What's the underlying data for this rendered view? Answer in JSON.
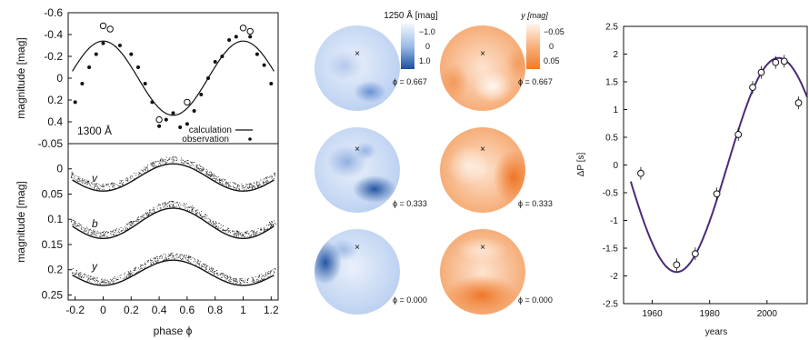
{
  "chart_data": [
    {
      "type": "scatter",
      "panel": "top-left",
      "ylabel": "magnitude [mag]",
      "ylim": [
        -0.6,
        0.6
      ],
      "y_inverted": true,
      "xlim": [
        -0.25,
        1.25
      ],
      "y_ticks": [
        "-0.6",
        "-0.4",
        "-0.2",
        "0",
        "0.2",
        "0.4"
      ],
      "annotation": "1300 Å",
      "legend": {
        "placement": "bottom-right",
        "entries": [
          "calculation",
          "observation"
        ]
      },
      "series": [
        {
          "name": "calculation",
          "kind": "line",
          "color": "#111111",
          "model": {
            "mean": 0.0,
            "amplitude": 0.34,
            "period": 1.0,
            "x_peak_bright": 0.0
          }
        },
        {
          "name": "observation",
          "kind": "points",
          "color": "#111111",
          "points": [
            [
              -0.2,
              0.22
            ],
            [
              -0.15,
              0.05
            ],
            [
              -0.1,
              -0.1
            ],
            [
              -0.05,
              -0.22
            ],
            [
              0.0,
              -0.32
            ],
            [
              0.05,
              -0.45
            ],
            [
              0.12,
              -0.3
            ],
            [
              0.2,
              -0.22
            ],
            [
              0.25,
              -0.1
            ],
            [
              0.3,
              0.05
            ],
            [
              0.35,
              0.22
            ],
            [
              0.4,
              0.44
            ],
            [
              0.45,
              0.38
            ],
            [
              0.5,
              0.32
            ],
            [
              0.55,
              0.45
            ],
            [
              0.6,
              0.42
            ],
            [
              0.65,
              0.3
            ],
            [
              0.7,
              0.15
            ],
            [
              0.75,
              0.0
            ],
            [
              0.8,
              -0.15
            ],
            [
              0.85,
              -0.2
            ],
            [
              0.9,
              -0.35
            ],
            [
              0.95,
              -0.38
            ],
            [
              1.0,
              -0.45
            ],
            [
              1.05,
              -0.38
            ],
            [
              1.1,
              -0.22
            ],
            [
              1.15,
              -0.12
            ],
            [
              1.2,
              0.05
            ]
          ]
        },
        {
          "name": "observation-open",
          "kind": "open-points",
          "color": "#111111",
          "points": [
            [
              0.0,
              -0.48
            ],
            [
              0.05,
              -0.45
            ],
            [
              0.4,
              0.38
            ],
            [
              0.6,
              0.22
            ],
            [
              1.0,
              -0.46
            ],
            [
              1.05,
              -0.43
            ]
          ]
        }
      ]
    },
    {
      "type": "scatter",
      "panel": "bottom-left",
      "xlabel": "phase ϕ",
      "ylabel": "magnitude [mag]",
      "xlim": [
        -0.25,
        1.25
      ],
      "ylim": [
        -0.05,
        0.26
      ],
      "y_inverted": true,
      "x_ticks": [
        "-0.2",
        "0",
        "0.2",
        "0.4",
        "0.6",
        "0.8",
        "1",
        "1.2"
      ],
      "y_ticks": [
        "-0.05",
        "0",
        "0.05",
        "0.1",
        "0.15",
        "0.2",
        "0.25"
      ],
      "series": [
        {
          "name": "v",
          "mean": 0.012,
          "amplitude": 0.027,
          "x_peak_bright": 0.5
        },
        {
          "name": "b",
          "mean": 0.103,
          "amplitude": 0.03,
          "x_peak_bright": 0.5
        },
        {
          "name": "y",
          "mean": 0.201,
          "amplitude": 0.025,
          "x_peak_bright": 0.5
        }
      ]
    },
    {
      "type": "heatmap",
      "panel": "middle",
      "colorbars": [
        {
          "title": "1250 Å [mag]",
          "ticks": [
            "−1.0",
            "0",
            "1.0"
          ],
          "colors": [
            "#f3f7fd",
            "#1c4f9e"
          ]
        },
        {
          "title": "y [mag]",
          "ticks": [
            "−0.05",
            "0",
            "0.05"
          ],
          "colors": [
            "#fff6ee",
            "#ef7a2a"
          ]
        }
      ],
      "maps": [
        {
          "phase": "ϕ = 0.667",
          "uv_spots": "lower-right",
          "y_spots": "lower-center-light"
        },
        {
          "phase": "ϕ = 0.333",
          "uv_spots": "right-dark",
          "y_spots": "right-orange"
        },
        {
          "phase": "ϕ = 0.000",
          "uv_spots": "left-dark",
          "y_spots": "bottom-orange"
        }
      ]
    },
    {
      "type": "scatter",
      "panel": "right",
      "xlabel": "years",
      "ylabel": "ΔP  [s]",
      "xlim": [
        1950,
        2014
      ],
      "ylim": [
        -2.5,
        2.5
      ],
      "x_ticks": [
        "1960",
        "1980",
        "2000"
      ],
      "y_ticks": [
        "-2.5",
        "-2",
        "-1.5",
        "-1",
        "-0.5",
        "0",
        "0.5",
        "1",
        "1.5",
        "2",
        "2.5"
      ],
      "series": [
        {
          "name": "model",
          "kind": "line",
          "color": "#4b2a7a",
          "model": {
            "amplitude": 1.93,
            "period": 71.0,
            "minimum_year": 1968.5
          }
        },
        {
          "name": "data",
          "kind": "open-points",
          "color": "#111111",
          "points": [
            [
              1956,
              -0.15
            ],
            [
              1968.5,
              -1.8
            ],
            [
              1975,
              -1.6
            ],
            [
              1982.5,
              -0.52
            ],
            [
              1990,
              0.55
            ],
            [
              1995,
              1.4
            ],
            [
              1998,
              1.67
            ],
            [
              2003,
              1.85
            ],
            [
              2006,
              1.87
            ],
            [
              2011,
              1.12
            ]
          ]
        }
      ]
    }
  ]
}
